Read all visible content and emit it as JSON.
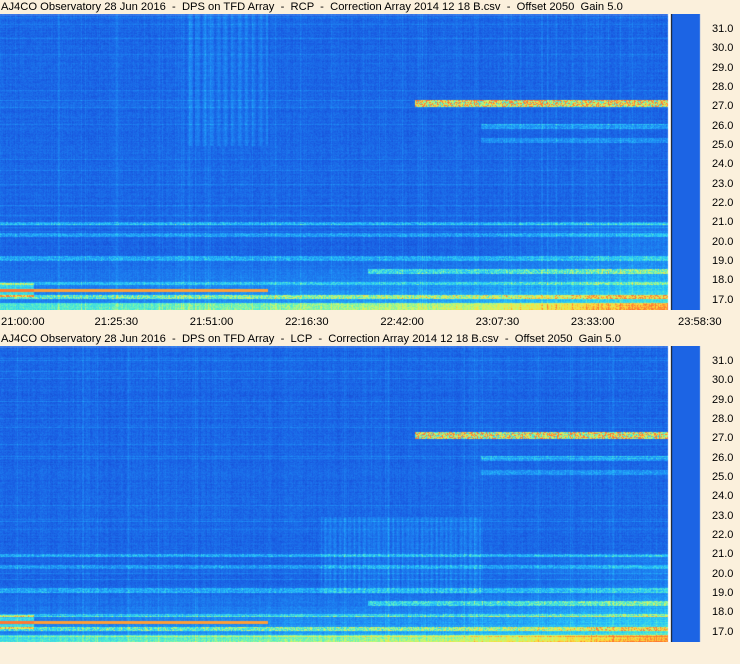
{
  "chart_data": [
    {
      "type": "heatmap",
      "title": "AJ4CO Observatory 28 Jun 2016  -  DPS on TFD Array  -  RCP  -  Correction Array 2014 12 18 B.csv  -  Offset 2050  Gain 5.0",
      "polarization": "RCP",
      "y_ticks": [
        "31.0",
        "30.0",
        "29.0",
        "28.0",
        "27.0",
        "26.0",
        "25.0",
        "24.0",
        "23.0",
        "22.0",
        "21.0",
        "20.0",
        "19.0",
        "18.0",
        "17.0"
      ],
      "x_ticks": [
        "21:00:00",
        "21:25:30",
        "21:51:00",
        "22:16:30",
        "22:42:00",
        "23:07:30",
        "23:33:00",
        "23:58:30"
      ],
      "ylim": [
        16.5,
        31.8
      ],
      "colors": {
        "background": "#1e64e6",
        "hot": "#ffe060"
      }
    },
    {
      "type": "heatmap",
      "title": "AJ4CO Observatory 28 Jun 2016  -  DPS on TFD Array  -  LCP  -  Correction Array 2014 12 18 B.csv  -  Offset 2050  Gain 5.0",
      "polarization": "LCP",
      "y_ticks": [
        "31.0",
        "30.0",
        "29.0",
        "28.0",
        "27.0",
        "26.0",
        "25.0",
        "24.0",
        "23.0",
        "22.0",
        "21.0",
        "20.0",
        "19.0",
        "18.0",
        "17.0"
      ],
      "x_ticks": [],
      "ylim": [
        16.5,
        31.8
      ],
      "colors": {
        "background": "#1e64e6",
        "hot": "#ffe060"
      }
    }
  ]
}
